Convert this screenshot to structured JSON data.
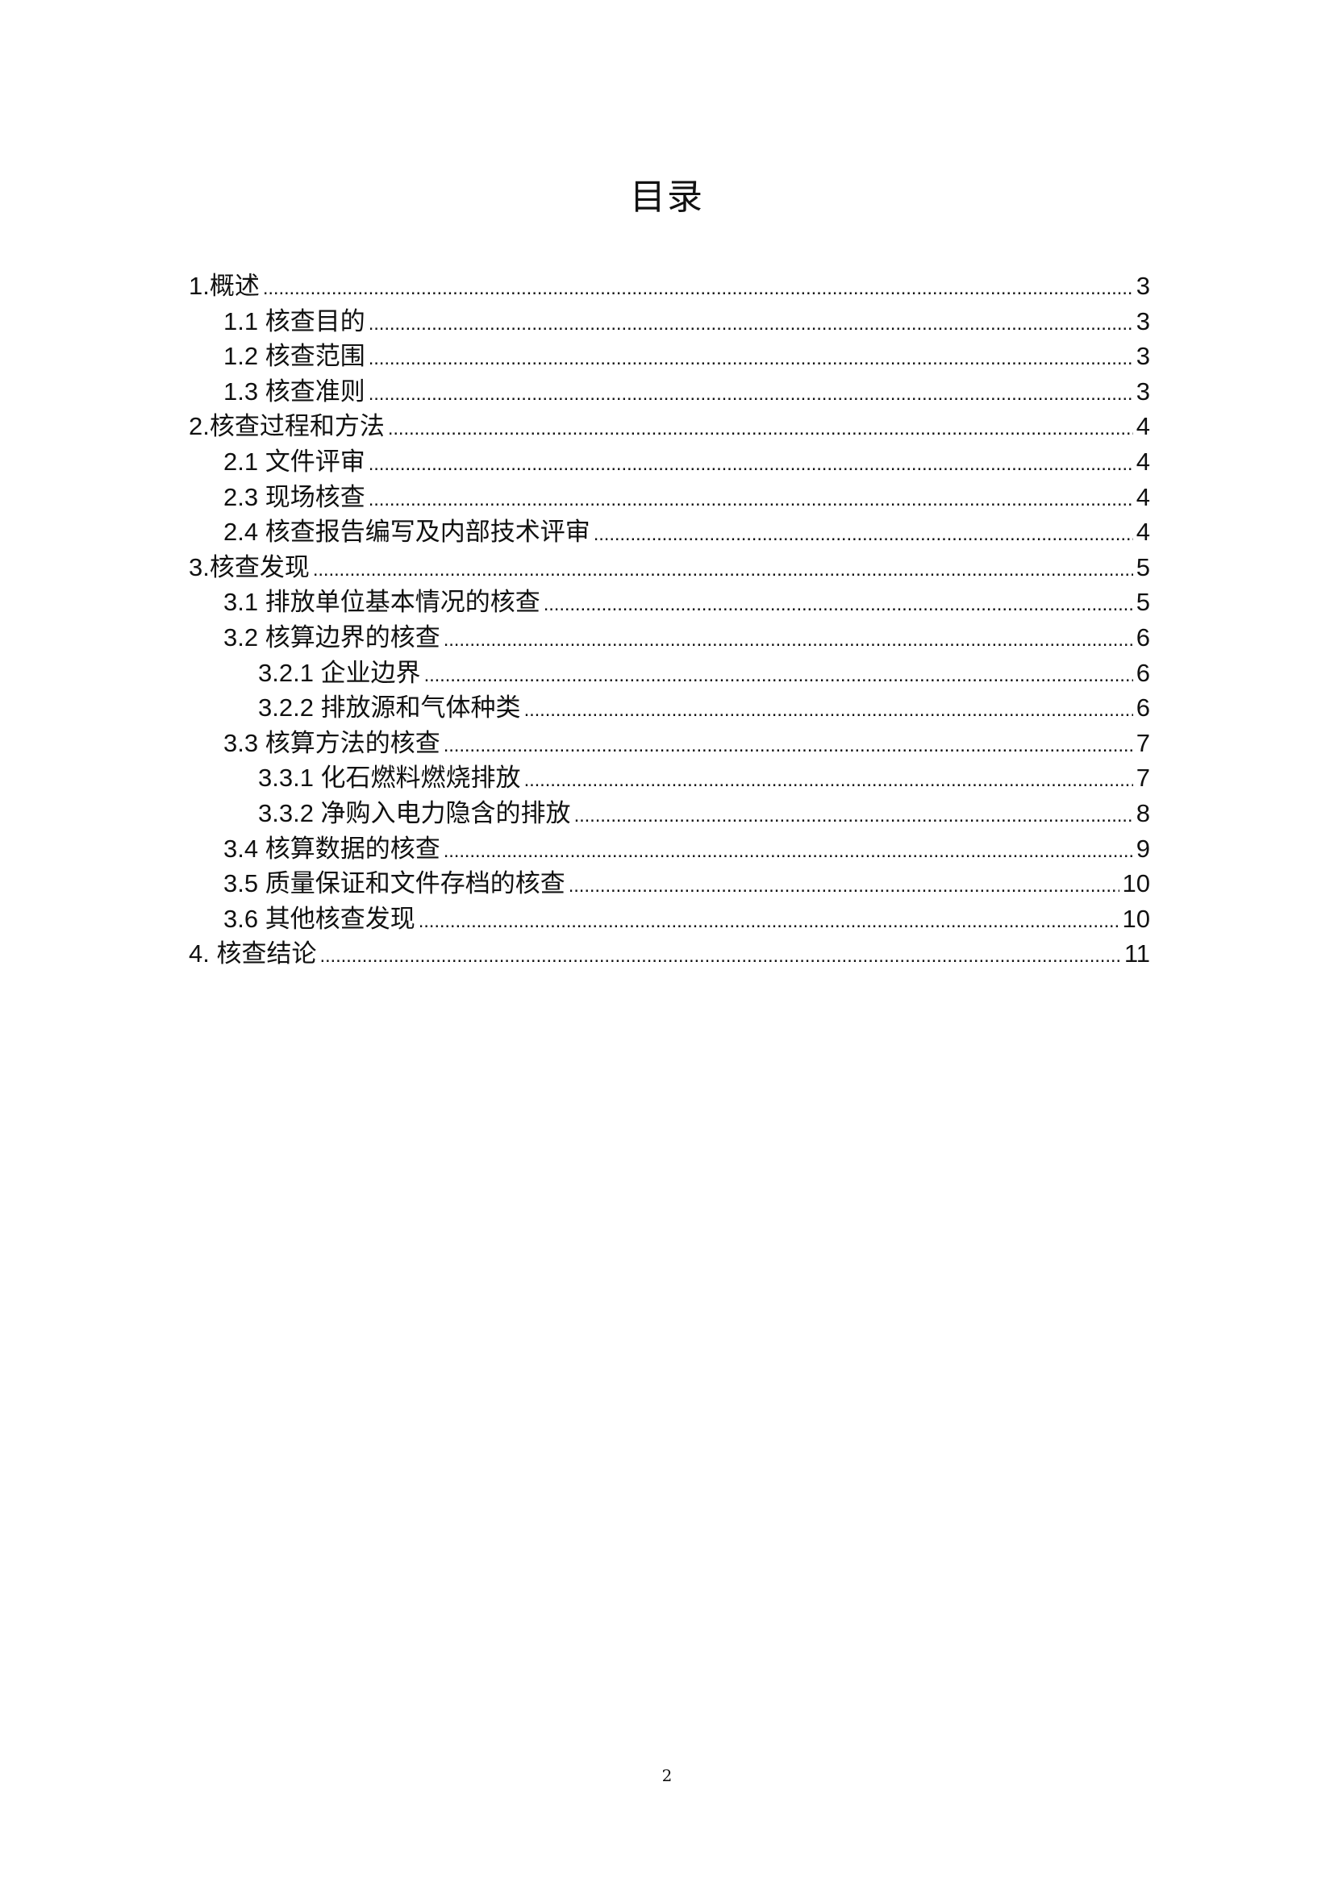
{
  "title": "目录",
  "entries": [
    {
      "label": "1.概述",
      "page": "3",
      "level": 1
    },
    {
      "label": "1.1 核查目的",
      "page": "3",
      "level": 2
    },
    {
      "label": "1.2 核查范围",
      "page": "3",
      "level": 2
    },
    {
      "label": "1.3 核查准则",
      "page": "3",
      "level": 2
    },
    {
      "label": "2.核查过程和方法",
      "page": "4",
      "level": 1
    },
    {
      "label": "2.1 文件评审",
      "page": "4",
      "level": 2
    },
    {
      "label": "2.3 现场核查",
      "page": "4",
      "level": 2
    },
    {
      "label": "2.4 核查报告编写及内部技术评审",
      "page": "4",
      "level": 2
    },
    {
      "label": "3.核查发现",
      "page": "5",
      "level": 1
    },
    {
      "label": "3.1 排放单位基本情况的核查",
      "page": "5",
      "level": 2
    },
    {
      "label": "3.2 核算边界的核查",
      "page": "6",
      "level": 2
    },
    {
      "label": "3.2.1  企业边界",
      "page": "6",
      "level": 3
    },
    {
      "label": "3.2.2 排放源和气体种类",
      "page": "6",
      "level": 3
    },
    {
      "label": "3.3 核算方法的核查",
      "page": "7",
      "level": 2
    },
    {
      "label": "3.3.1  化石燃料燃烧排放",
      "page": "7",
      "level": 3
    },
    {
      "label": "3.3.2 净购入电力隐含的排放",
      "page": "8",
      "level": 3
    },
    {
      "label": "3.4 核算数据的核查",
      "page": "9",
      "level": 2
    },
    {
      "label": "3.5 质量保证和文件存档的核查",
      "page": "10",
      "level": 2
    },
    {
      "label": "3.6 其他核查发现",
      "page": "10",
      "level": 2
    },
    {
      "label": "4.  核查结论",
      "page": "11",
      "level": 1
    }
  ],
  "page_number": "2"
}
